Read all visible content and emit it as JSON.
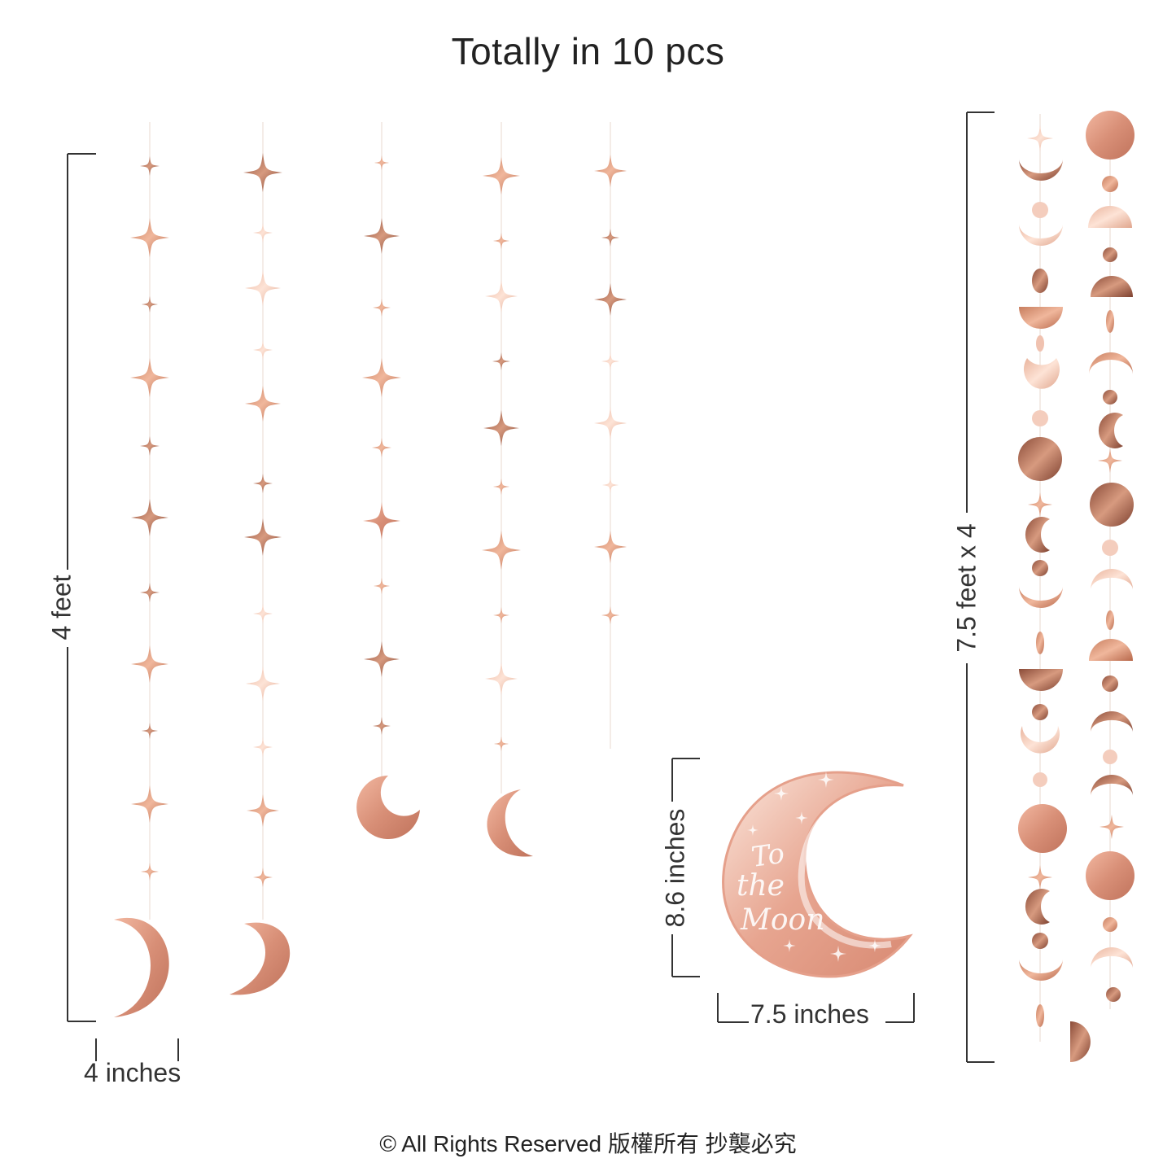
{
  "title": "Totally in 10 pcs",
  "dimensions": {
    "star_strand_length": "4 feet",
    "moon_width": "4 inches",
    "cutout_height": "8.6 inches",
    "cutout_width": "7.5 inches",
    "circle_garland_length": "7.5 feet x 4"
  },
  "cutout_text": "To the Moon",
  "footer": "© All Rights Reserved 版權所有 抄襲必究",
  "colors": {
    "rose_gold_dark": "#b8735a",
    "rose_gold": "#d99a80",
    "rose_gold_light": "#f2c9b6",
    "text": "#222222"
  }
}
